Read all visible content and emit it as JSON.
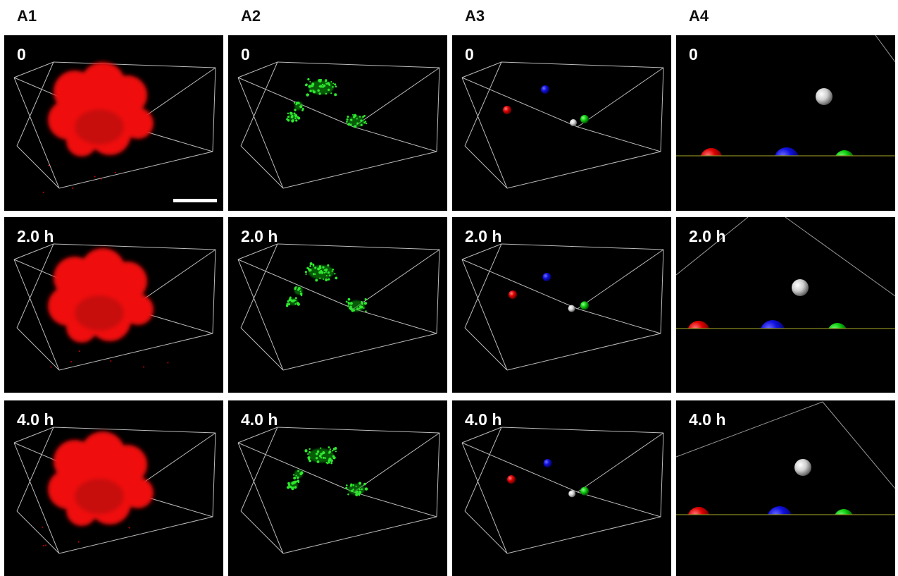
{
  "columns": [
    "A1",
    "A2",
    "A3",
    "A4"
  ],
  "rows": [
    "0",
    "2.0 h",
    "4.0 h"
  ]
}
